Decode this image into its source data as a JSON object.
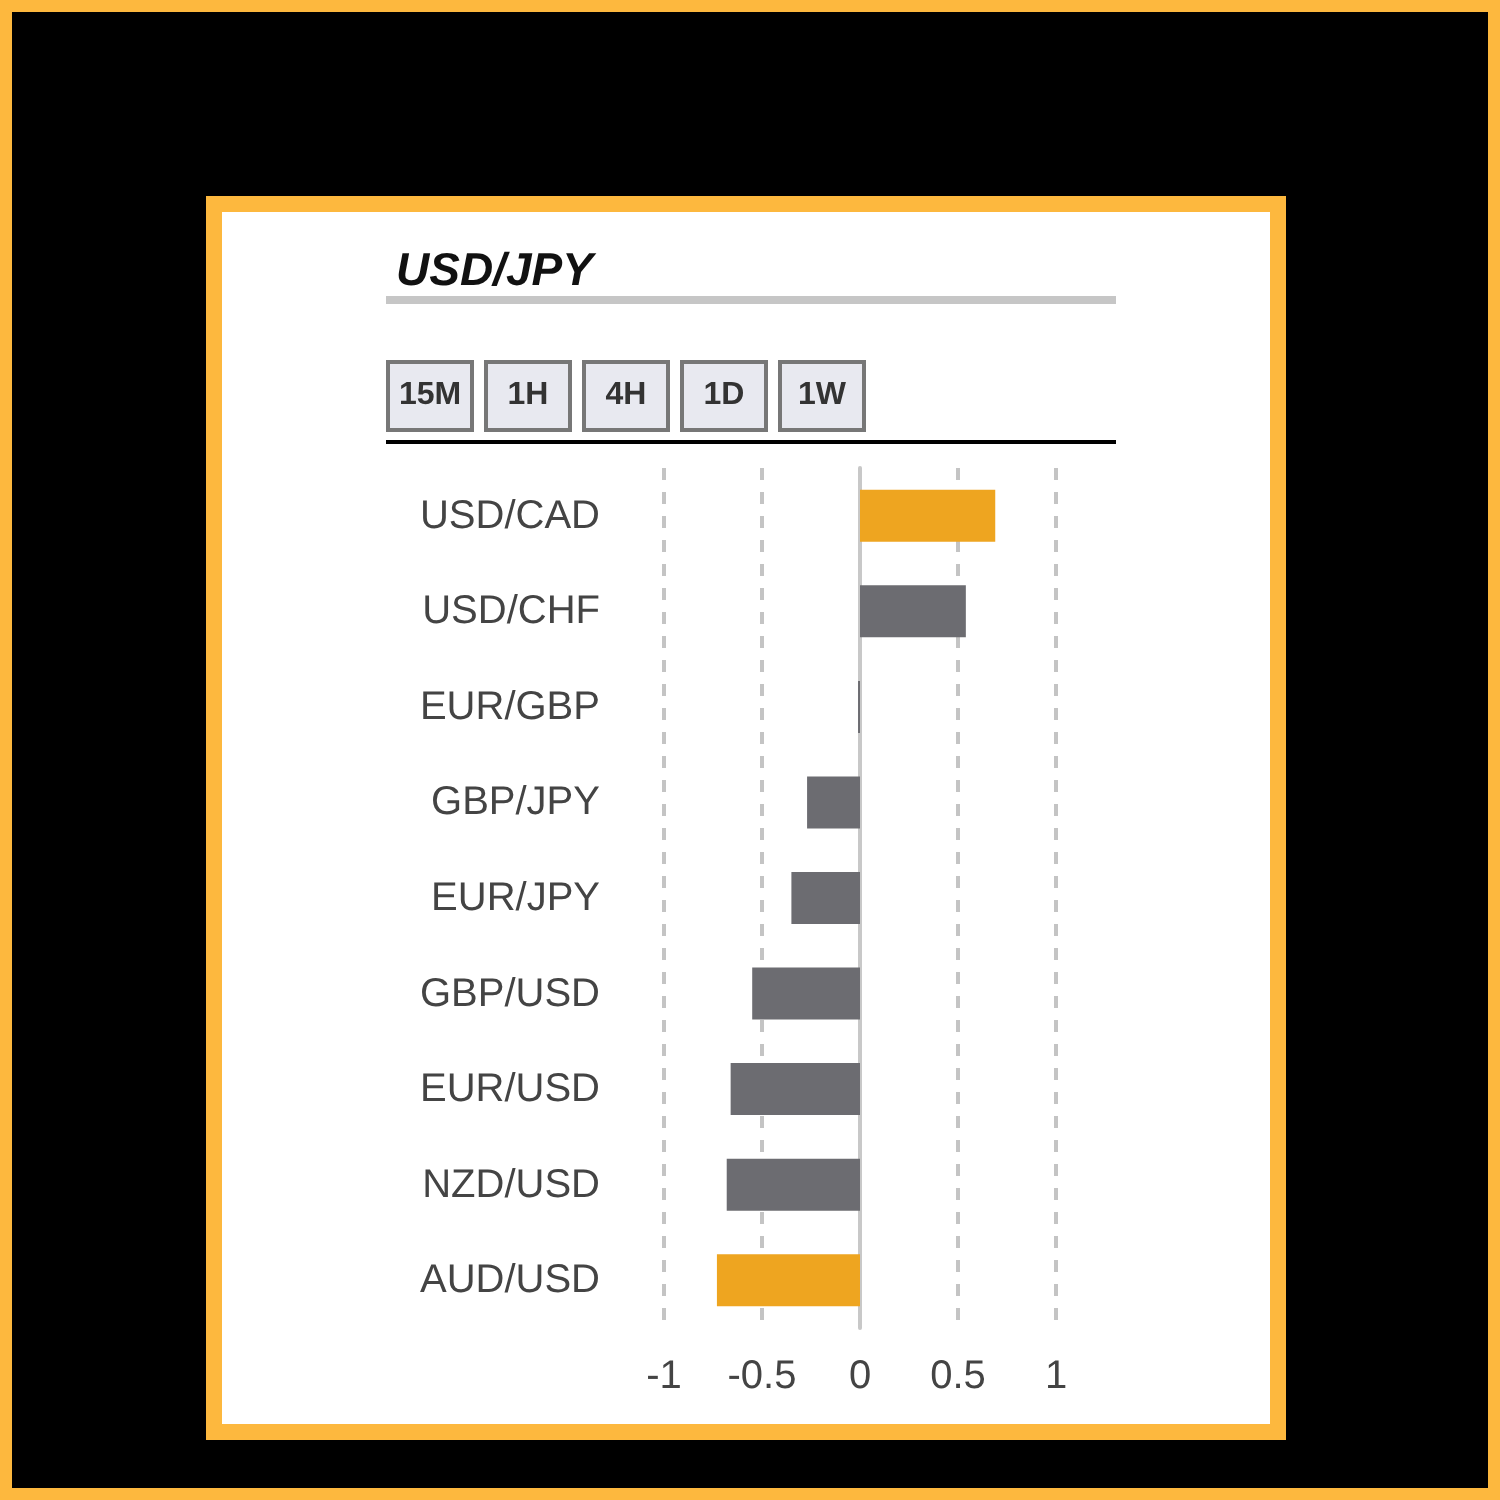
{
  "chart_data": {
    "type": "bar",
    "orientation": "horizontal",
    "title": "USD/JPY",
    "annotations": [
      "15M",
      "1H",
      "4H",
      "1D",
      "1W"
    ],
    "categories": [
      "USD/CAD",
      "USD/CHF",
      "EUR/GBP",
      "GBP/JPY",
      "EUR/JPY",
      "GBP/USD",
      "EUR/USD",
      "NZD/USD",
      "AUD/USD"
    ],
    "values": [
      0.69,
      0.54,
      -0.01,
      -0.27,
      -0.35,
      -0.55,
      -0.66,
      -0.68,
      -0.73
    ],
    "colors": [
      "#eea520",
      "#6c6c71",
      "#6c6c71",
      "#6c6c71",
      "#6c6c71",
      "#6c6c71",
      "#6c6c71",
      "#6c6c71",
      "#eea520"
    ],
    "xlim": [
      -1,
      1
    ],
    "xticks": [
      -1,
      -0.5,
      0,
      0.5,
      1
    ],
    "grid": "x"
  }
}
